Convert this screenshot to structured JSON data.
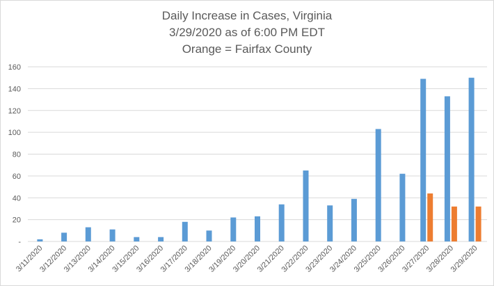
{
  "chart_data": {
    "type": "bar",
    "title": "Daily Increase in Cases, Virginia",
    "subtitle": "3/29/2020 as of 6:00 PM EDT",
    "subtitle2": "Orange = Fairfax County",
    "xlabel": "",
    "ylabel": "",
    "ylim": [
      0,
      160
    ],
    "yticks": [
      0,
      20,
      40,
      60,
      80,
      100,
      120,
      140,
      160
    ],
    "ytick_labels": [
      "-",
      "20",
      "40",
      "60",
      "80",
      "100",
      "120",
      "140",
      "160"
    ],
    "grid": true,
    "categories": [
      "3/11/2020",
      "3/12/2020",
      "3/13/2020",
      "3/14/2020",
      "3/15/2020",
      "3/16/2020",
      "3/17/2020",
      "3/18/2020",
      "3/19/2020",
      "3/20/2020",
      "3/21/2020",
      "3/22/2020",
      "3/23/2020",
      "3/24/2020",
      "3/25/2020",
      "3/26/2020",
      "3/27/2020",
      "3/28/2020",
      "3/29/2020"
    ],
    "series": [
      {
        "name": "",
        "color": "#5b9bd5",
        "values": [
          2,
          8,
          13,
          11,
          4,
          4,
          18,
          10,
          22,
          23,
          34,
          65,
          33,
          39,
          103,
          62,
          149,
          133,
          150
        ]
      },
      {
        "name": "Fairfax County",
        "color": "#ed7d31",
        "values": [
          null,
          null,
          null,
          null,
          null,
          null,
          null,
          null,
          null,
          null,
          null,
          null,
          null,
          null,
          null,
          null,
          44,
          32,
          32
        ]
      }
    ]
  }
}
